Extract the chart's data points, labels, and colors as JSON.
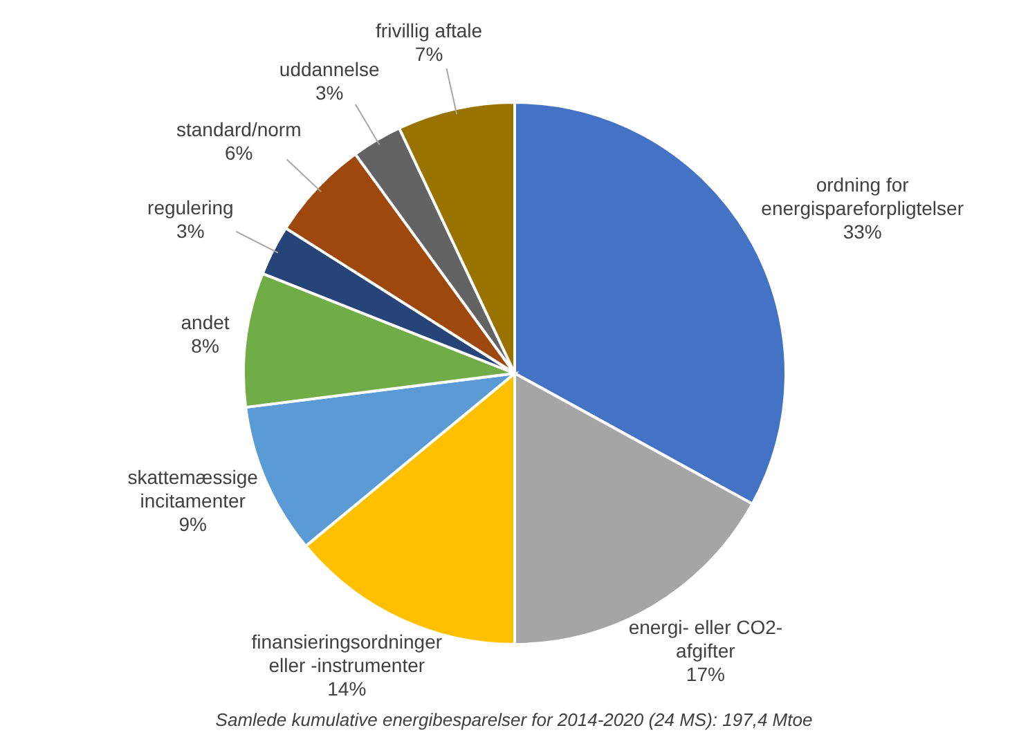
{
  "chart_data": {
    "type": "pie",
    "categories": [
      "ordning for energispareforpligtelser",
      "energi- eller CO2-afgifter",
      "finansieringsordninger eller -instrumenter",
      "skattemæssige incitamenter",
      "andet",
      "regulering",
      "standard/norm",
      "uddannelse",
      "frivillig aftale"
    ],
    "values": [
      33,
      17,
      14,
      9,
      8,
      3,
      6,
      3,
      7
    ],
    "value_labels": [
      "33%",
      "17%",
      "14%",
      "9%",
      "8%",
      "3%",
      "6%",
      "3%",
      "7%"
    ],
    "colors": [
      "#4472c4",
      "#a5a5a5",
      "#ffc000",
      "#5b9bd5",
      "#70ad47",
      "#264478",
      "#9e480e",
      "#636363",
      "#997300"
    ],
    "annotations": [
      "Samlede kumulative energibesparelser for 2014-2020 (24 MS): 197,4 Mtoe"
    ]
  }
}
